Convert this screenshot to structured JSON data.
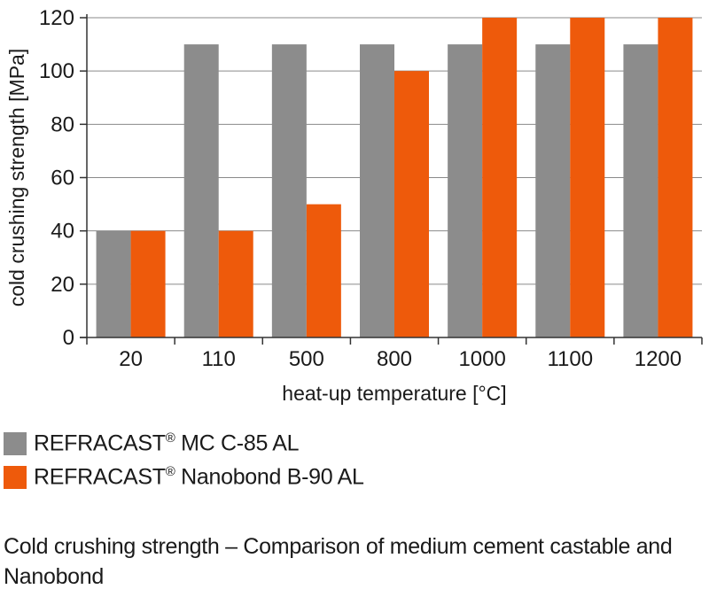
{
  "chart_data": {
    "type": "bar",
    "categories": [
      "20",
      "110",
      "500",
      "800",
      "1000",
      "1100",
      "1200"
    ],
    "series": [
      {
        "name": "REFRACAST® MC C-85 AL",
        "color": "#8c8c8c",
        "values": [
          40,
          110,
          110,
          110,
          110,
          110,
          110
        ]
      },
      {
        "name": "REFRACAST® Nanobond B-90 AL",
        "color": "#ee5a0b",
        "values": [
          40,
          40,
          50,
          100,
          120,
          120,
          120
        ]
      }
    ],
    "xlabel": "heat-up temperature [°C]",
    "ylabel": "cold crushing strength [MPa]",
    "ylim": [
      0,
      120
    ],
    "yticks": [
      0,
      20,
      40,
      60,
      80,
      100,
      120
    ],
    "grid": true,
    "legend_position": "bottom-left"
  },
  "caption": "Cold crushing strength – Comparison of medium cement castable and Nanobond"
}
